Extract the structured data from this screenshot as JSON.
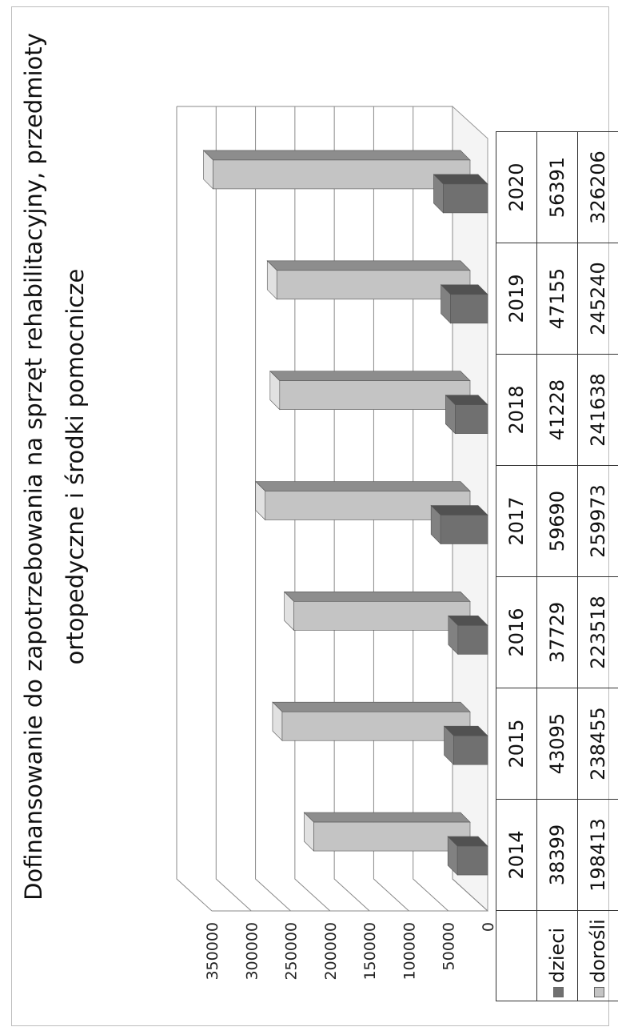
{
  "chart_data": {
    "type": "bar",
    "title": "Dofinansowanie do zapotrzebowania  na sprzęt rehabilitacyjny, przedmioty ortopedyczne i środki pomocnicze",
    "categories": [
      "2014",
      "2015",
      "2016",
      "2017",
      "2018",
      "2019",
      "2020"
    ],
    "series": [
      {
        "name": "dzieci",
        "values": [
          38399,
          43095,
          37729,
          59690,
          41228,
          47155,
          56391
        ],
        "color": "#707070"
      },
      {
        "name": "dorośli",
        "values": [
          198413,
          238455,
          223518,
          259973,
          241638,
          245240,
          326206
        ],
        "color": "#c4c4c4"
      }
    ],
    "ylim": [
      0,
      350000
    ],
    "yticks": [
      "0",
      "50000",
      "100000",
      "150000",
      "200000",
      "250000",
      "300000",
      "350000"
    ],
    "grid": true,
    "legend": "data table (left)",
    "orientation": "page rotated 90° counter-clockwise"
  }
}
